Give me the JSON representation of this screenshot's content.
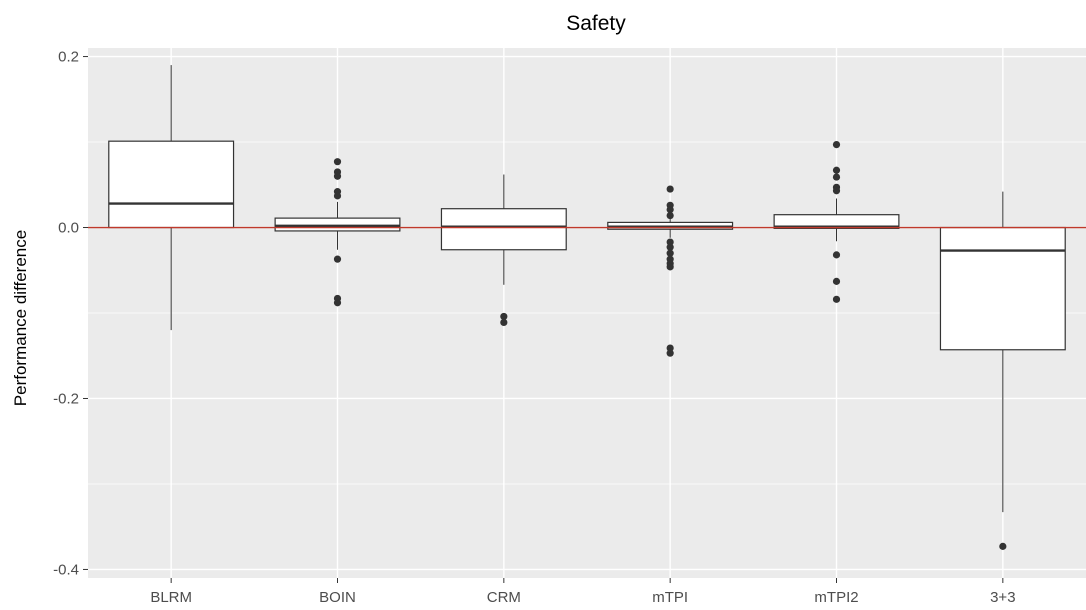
{
  "chart_data": {
    "type": "boxplot",
    "title": "Safety",
    "xlabel": "",
    "ylabel": "Performance difference",
    "ylim": [
      -0.41,
      0.21
    ],
    "yticks": [
      0.2,
      0.0,
      -0.2,
      -0.4
    ],
    "ytick_labels": [
      "0.2",
      "0.0",
      "-0.2",
      "-0.4"
    ],
    "categories": [
      "BLRM",
      "BOIN",
      "CRM",
      "mTPI",
      "mTPI2",
      "3+3"
    ],
    "reference_line": {
      "y": 0.0,
      "color": "#c0392b"
    },
    "grid": true,
    "panel_background": "#ebebeb",
    "boxes": [
      {
        "category": "BLRM",
        "whisker_low": -0.12,
        "q1": 0.0,
        "median": 0.028,
        "q3": 0.101,
        "whisker_high": 0.19,
        "outliers": []
      },
      {
        "category": "BOIN",
        "whisker_low": -0.026,
        "q1": -0.004,
        "median": 0.002,
        "q3": 0.011,
        "whisker_high": 0.03,
        "outliers": [
          0.077,
          0.065,
          0.06,
          0.042,
          0.037,
          -0.037,
          -0.083,
          -0.088
        ]
      },
      {
        "category": "CRM",
        "whisker_low": -0.067,
        "q1": -0.026,
        "median": 0.001,
        "q3": 0.022,
        "whisker_high": 0.062,
        "outliers": [
          -0.104,
          -0.111
        ]
      },
      {
        "category": "mTPI",
        "whisker_low": -0.012,
        "q1": -0.002,
        "median": 0.001,
        "q3": 0.006,
        "whisker_high": 0.01,
        "outliers": [
          0.045,
          0.026,
          0.021,
          0.014,
          -0.017,
          -0.023,
          -0.03,
          -0.037,
          -0.042,
          -0.046,
          -0.141,
          -0.147
        ]
      },
      {
        "category": "mTPI2",
        "whisker_low": -0.016,
        "q1": -0.001,
        "median": 0.001,
        "q3": 0.015,
        "whisker_high": 0.034,
        "outliers": [
          0.097,
          0.067,
          0.059,
          0.047,
          0.043,
          -0.032,
          -0.063,
          -0.084
        ]
      },
      {
        "category": "3+3",
        "whisker_low": -0.333,
        "q1": -0.143,
        "median": -0.027,
        "q3": 0.0,
        "whisker_high": 0.042,
        "outliers": [
          -0.373
        ]
      }
    ]
  }
}
